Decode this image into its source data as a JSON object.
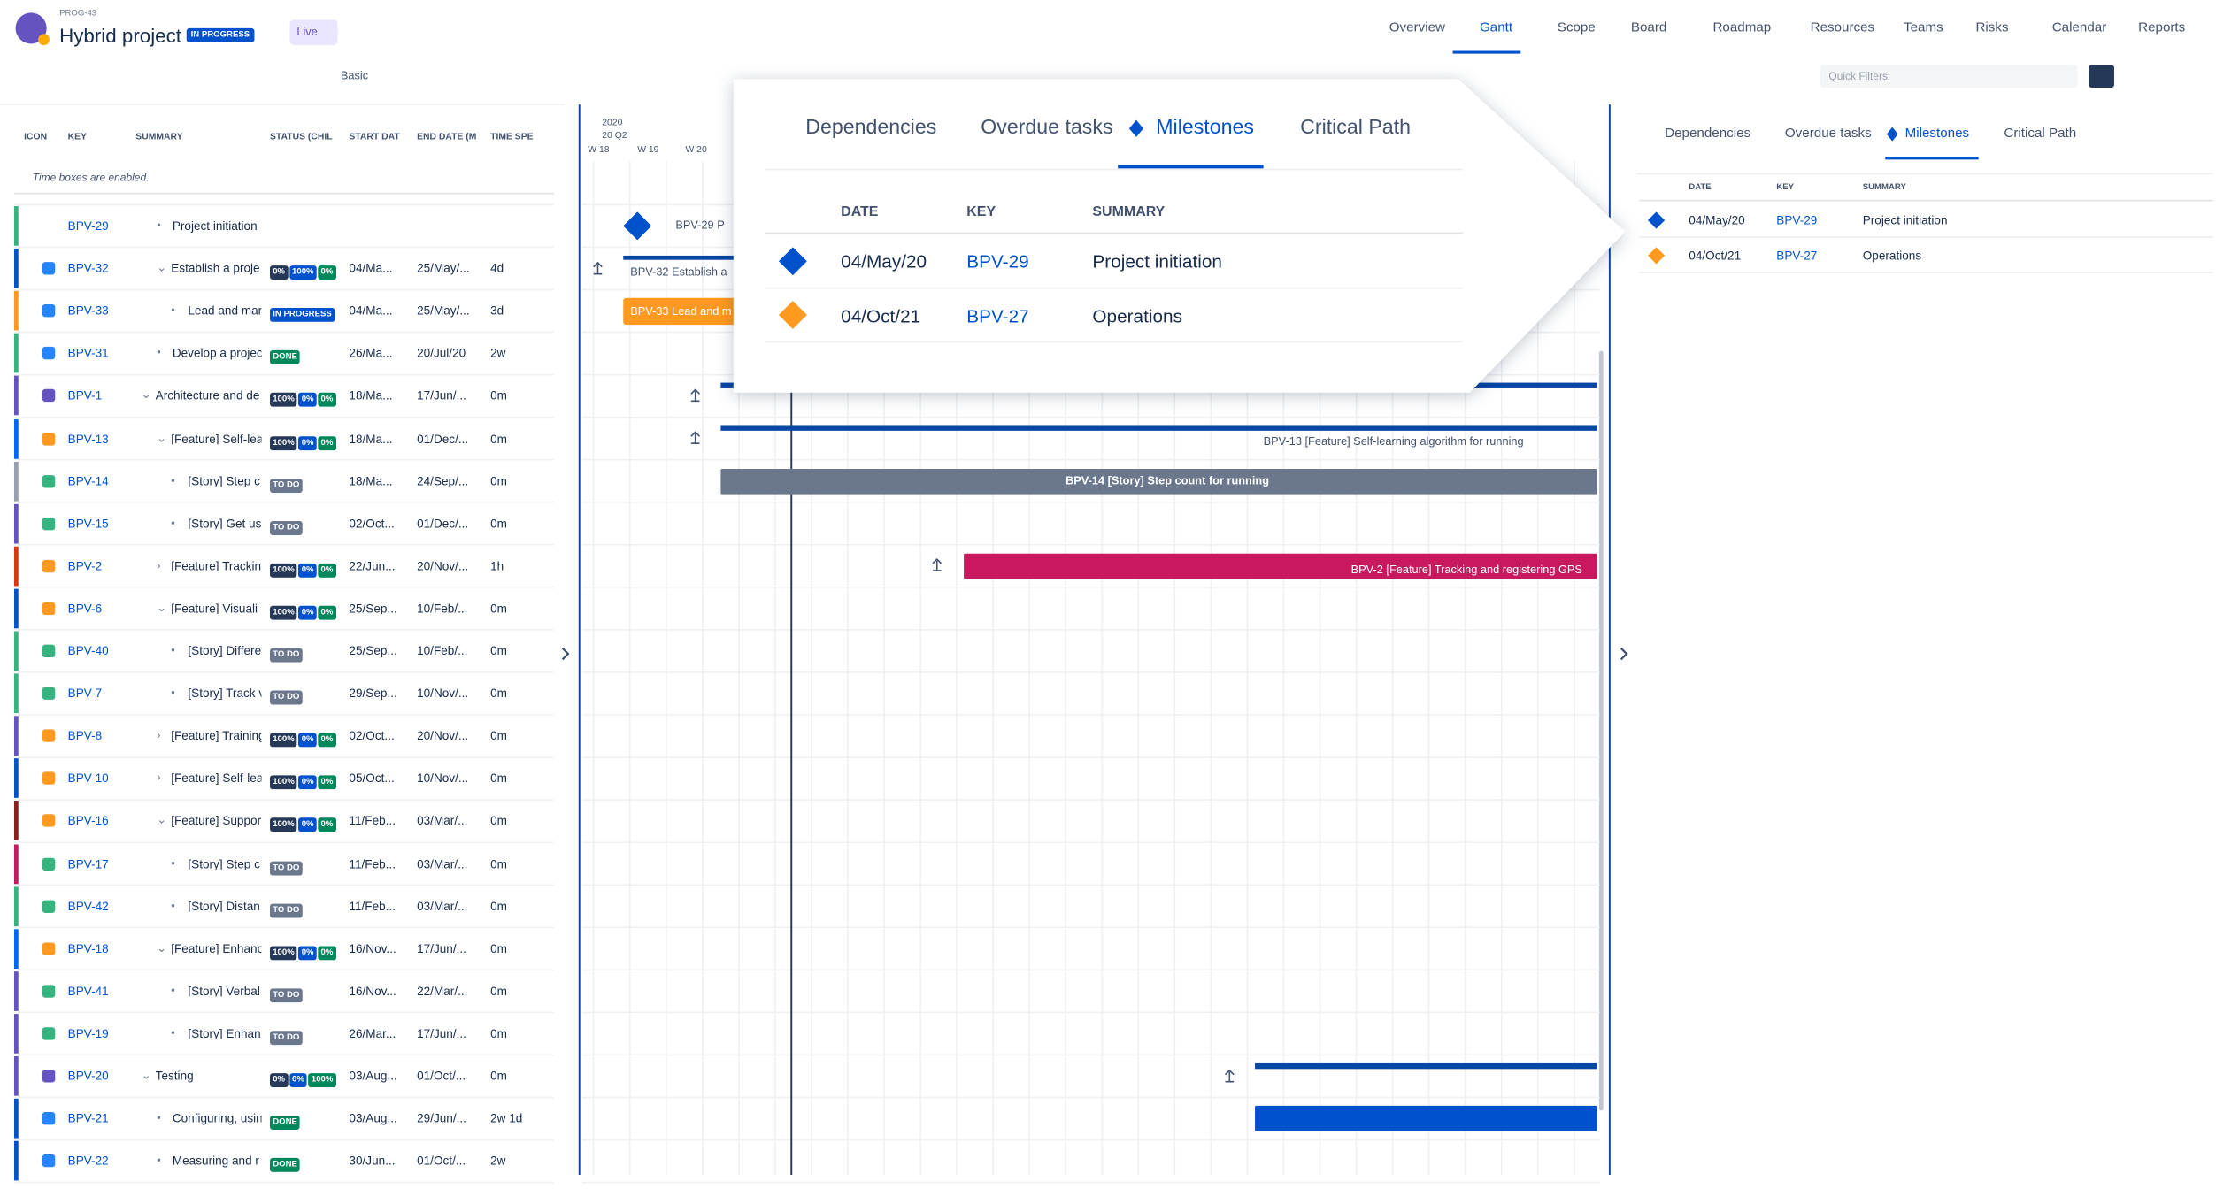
{
  "header": {
    "project_key": "PROG-43",
    "title": "Hybrid project",
    "status": "IN PROGRESS",
    "view": "Live"
  },
  "nav": [
    "Overview",
    "Gantt",
    "Scope",
    "Board",
    "Roadmap",
    "Resources",
    "Teams",
    "Risks",
    "Calendar",
    "Reports"
  ],
  "toolbar": {
    "view_mode": "Basic",
    "quick_filters": "Quick Filters:"
  },
  "table": {
    "columns": [
      "ICON",
      "KEY",
      "SUMMARY",
      "STATUS (CHIL",
      "START DAT",
      "END DATE (M",
      "TIME SPE"
    ],
    "notice": "Time boxes are enabled.",
    "rows": [
      {
        "key": "BPV-29",
        "summary": "Project initiation",
        "status": [],
        "start": "",
        "end": "",
        "time": ""
      },
      {
        "key": "BPV-32",
        "summary": "Establish a proje",
        "status": [
          "0%",
          "100%",
          "0%"
        ],
        "start": "04/Ma...",
        "end": "25/May/...",
        "time": "4d"
      },
      {
        "key": "BPV-33",
        "summary": "Lead and mar",
        "status": [
          "IN PROGRESS"
        ],
        "start": "04/Ma...",
        "end": "25/May/...",
        "time": "3d"
      },
      {
        "key": "BPV-31",
        "summary": "Develop a projec",
        "status": [
          "DONE"
        ],
        "start": "26/Ma...",
        "end": "20/Jul/20",
        "time": "2w"
      },
      {
        "key": "BPV-1",
        "summary": "Architecture and de",
        "status": [
          "100%",
          "0%",
          "0%"
        ],
        "start": "18/Ma...",
        "end": "17/Jun/...",
        "time": "0m"
      },
      {
        "key": "BPV-13",
        "summary": "[Feature] Self-lea",
        "status": [
          "100%",
          "0%",
          "0%"
        ],
        "start": "18/Ma...",
        "end": "01/Dec/...",
        "time": "0m"
      },
      {
        "key": "BPV-14",
        "summary": "[Story] Step c",
        "status": [
          "TO DO"
        ],
        "start": "18/Ma...",
        "end": "24/Sep/...",
        "time": "0m"
      },
      {
        "key": "BPV-15",
        "summary": "[Story] Get us",
        "status": [
          "TO DO"
        ],
        "start": "02/Oct...",
        "end": "01/Dec/...",
        "time": "0m"
      },
      {
        "key": "BPV-2",
        "summary": "[Feature] Trackin",
        "status": [
          "100%",
          "0%",
          "0%"
        ],
        "start": "22/Jun...",
        "end": "20/Nov/...",
        "time": "1h"
      },
      {
        "key": "BPV-6",
        "summary": "[Feature] Visuali",
        "status": [
          "100%",
          "0%",
          "0%"
        ],
        "start": "25/Sep...",
        "end": "10/Feb/...",
        "time": "0m"
      },
      {
        "key": "BPV-40",
        "summary": "[Story] Differe",
        "status": [
          "TO DO"
        ],
        "start": "25/Sep...",
        "end": "10/Feb/...",
        "time": "0m"
      },
      {
        "key": "BPV-7",
        "summary": "[Story] Track v",
        "status": [
          "TO DO"
        ],
        "start": "29/Sep...",
        "end": "10/Nov/...",
        "time": "0m"
      },
      {
        "key": "BPV-8",
        "summary": "[Feature] Training",
        "status": [
          "100%",
          "0%",
          "0%"
        ],
        "start": "02/Oct...",
        "end": "20/Nov/...",
        "time": "0m"
      },
      {
        "key": "BPV-10",
        "summary": "[Feature] Self-lea",
        "status": [
          "100%",
          "0%",
          "0%"
        ],
        "start": "05/Oct...",
        "end": "10/Nov/...",
        "time": "0m"
      },
      {
        "key": "BPV-16",
        "summary": "[Feature] Suppor",
        "status": [
          "100%",
          "0%",
          "0%"
        ],
        "start": "11/Feb...",
        "end": "03/Mar/...",
        "time": "0m"
      },
      {
        "key": "BPV-17",
        "summary": "[Story] Step c",
        "status": [
          "TO DO"
        ],
        "start": "11/Feb...",
        "end": "03/Mar/...",
        "time": "0m"
      },
      {
        "key": "BPV-42",
        "summary": "[Story] Distan",
        "status": [
          "TO DO"
        ],
        "start": "11/Feb...",
        "end": "03/Mar/...",
        "time": "0m"
      },
      {
        "key": "BPV-18",
        "summary": "[Feature] Enhanc",
        "status": [
          "100%",
          "0%",
          "0%"
        ],
        "start": "16/Nov...",
        "end": "17/Jun/...",
        "time": "0m"
      },
      {
        "key": "BPV-41",
        "summary": "[Story] Verbal",
        "status": [
          "TO DO"
        ],
        "start": "16/Nov...",
        "end": "22/Mar/...",
        "time": "0m"
      },
      {
        "key": "BPV-19",
        "summary": "[Story] Enhan",
        "status": [
          "TO DO"
        ],
        "start": "26/Mar...",
        "end": "17/Jun/...",
        "time": "0m"
      },
      {
        "key": "BPV-20",
        "summary": "Testing",
        "status": [
          "0%",
          "0%",
          "100%"
        ],
        "start": "03/Aug...",
        "end": "01/Oct/...",
        "time": "0m"
      },
      {
        "key": "BPV-21",
        "summary": "Configuring, usin",
        "status": [
          "DONE"
        ],
        "start": "03/Aug...",
        "end": "29/Jun/...",
        "time": "2w 1d"
      },
      {
        "key": "BPV-22",
        "summary": "Measuring and r",
        "status": [
          "DONE"
        ],
        "start": "30/Jun...",
        "end": "01/Oct/...",
        "time": "2w"
      }
    ]
  },
  "timeline": {
    "year": "2020",
    "quarter": "20 Q2",
    "weeks": [
      "W 18",
      "W 19",
      "W 20"
    ],
    "bars": [
      "BPV-29  P",
      "BPV-32  Establish a",
      "BPV-33  Lead and m",
      "BPV-13  [Feature] Self-learning algorithm for running",
      "BPV-14  [Story] Step count for running",
      "BPV-2  [Feature] Tracking and registering GPS"
    ]
  },
  "popup": {
    "tabs": [
      "Dependencies",
      "Overdue tasks",
      "Milestones",
      "Critical Path"
    ],
    "columns": [
      "DATE",
      "KEY",
      "SUMMARY"
    ],
    "rows": [
      {
        "date": "04/May/20",
        "key": "BPV-29",
        "summary": "Project initiation"
      },
      {
        "date": "04/Oct/21",
        "key": "BPV-27",
        "summary": "Operations"
      }
    ]
  },
  "panel": {
    "tabs": [
      "Dependencies",
      "Overdue tasks",
      "Milestones",
      "Critical Path"
    ],
    "columns": [
      "DATE",
      "KEY",
      "SUMMARY"
    ],
    "rows": [
      {
        "date": "04/May/20",
        "key": "BPV-29",
        "summary": "Project initiation"
      },
      {
        "date": "04/Oct/21",
        "key": "BPV-27",
        "summary": "Operations"
      }
    ]
  }
}
